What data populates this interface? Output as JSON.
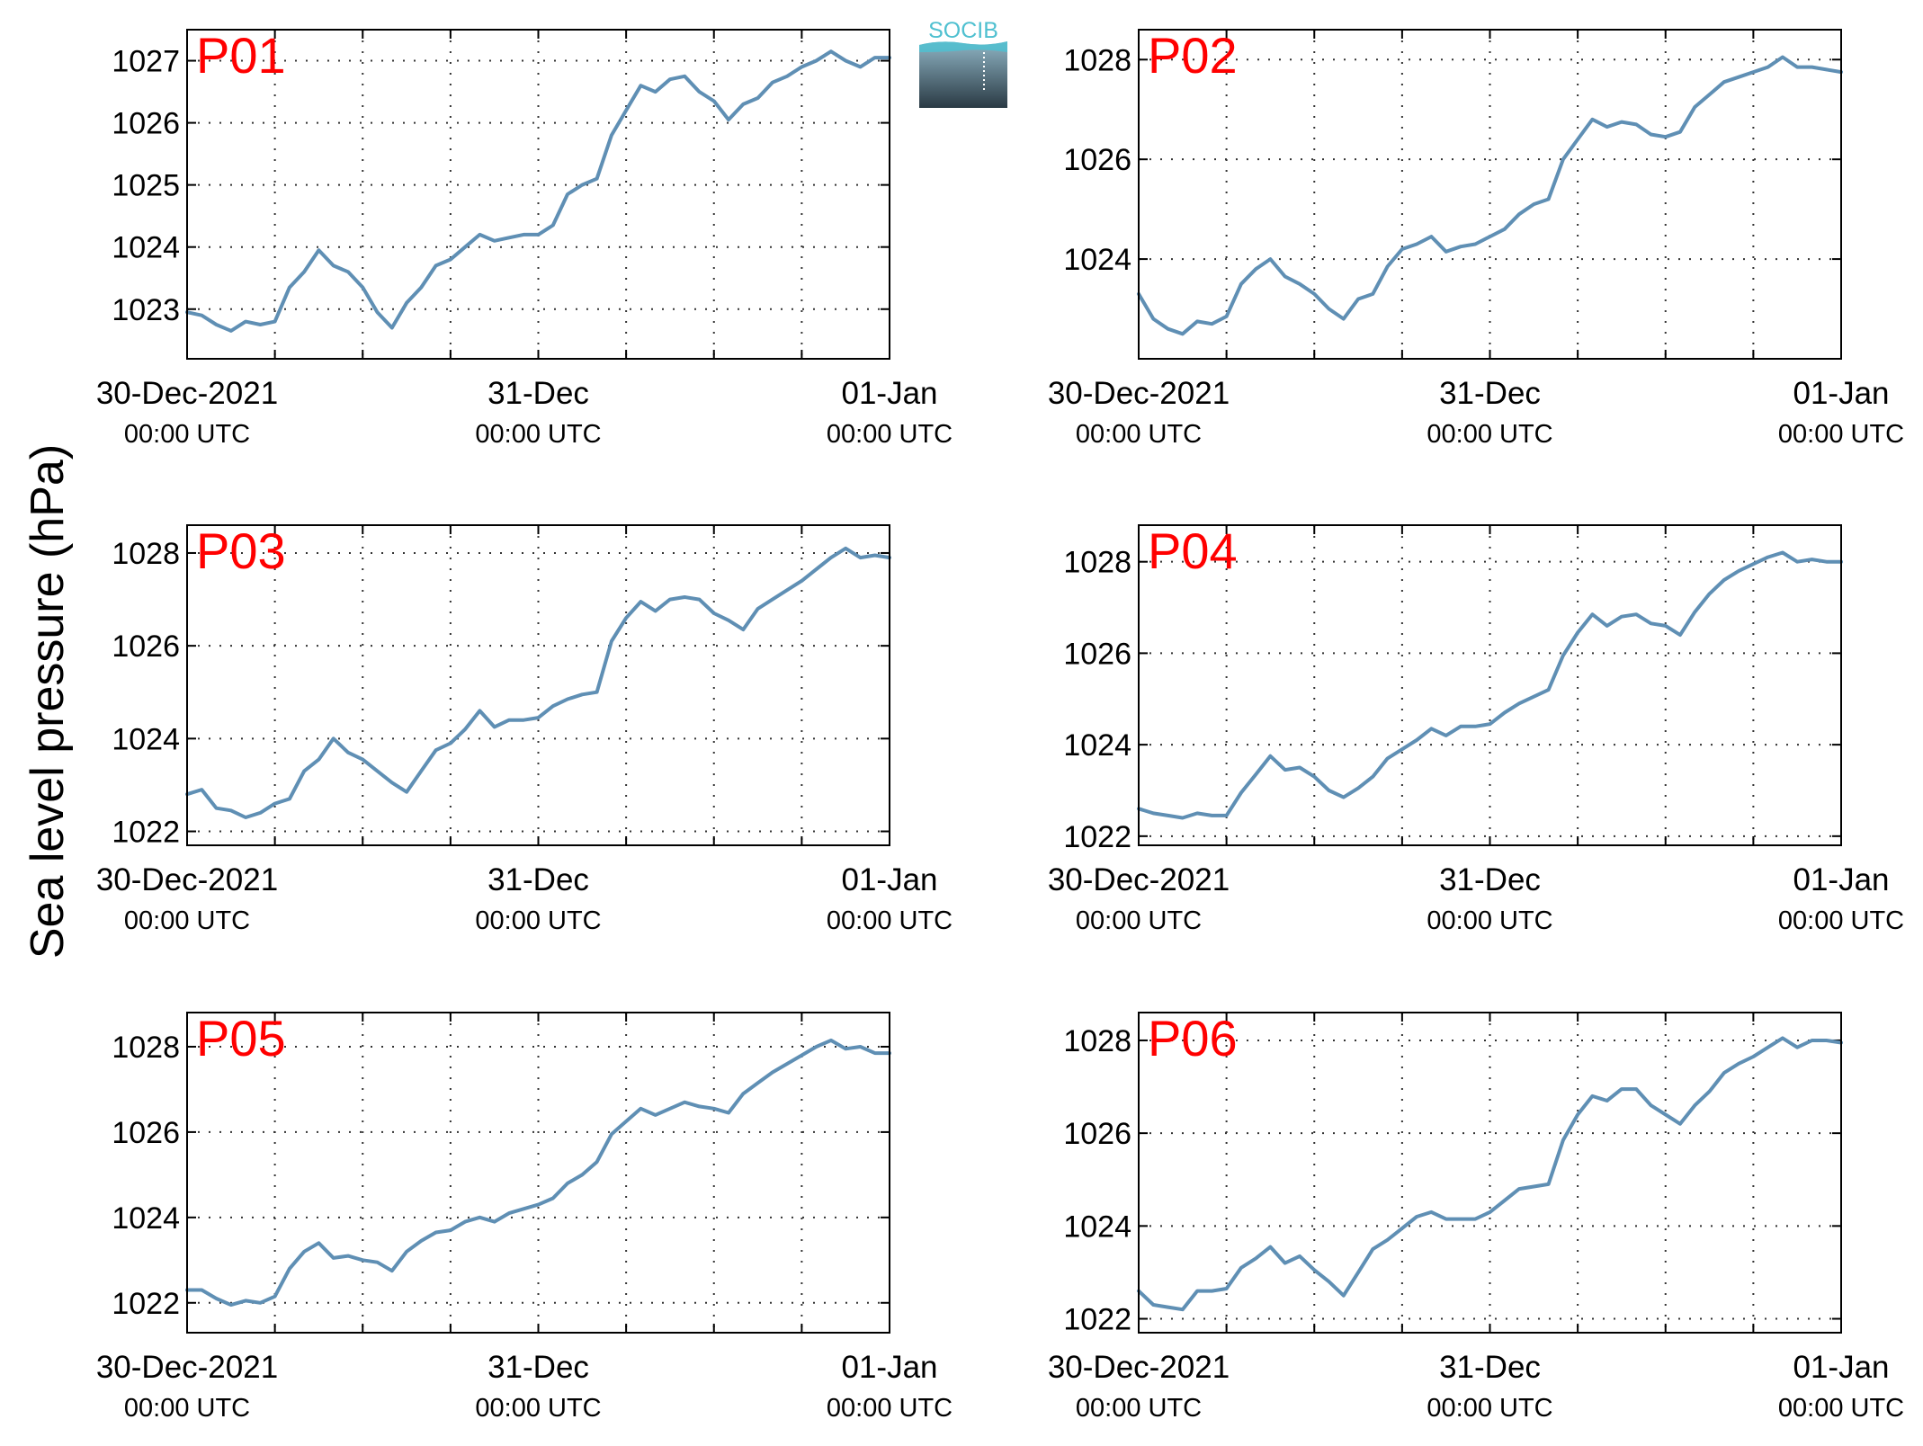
{
  "ylabel": "Sea level pressure (hPa)",
  "logo_text": "SOCIB",
  "colors": {
    "line": "#5f8fb4",
    "panel_label": "#ff0000",
    "grid": "#333333",
    "logo_teal": "#4fc0d0",
    "logo_dark": "#2a3a44"
  },
  "x_ticks": [
    {
      "date": "30-Dec-2021",
      "time": "00:00 UTC"
    },
    {
      "date": "31-Dec",
      "time": "00:00 UTC"
    },
    {
      "date": "01-Jan",
      "time": "00:00 UTC"
    }
  ],
  "chart_data": [
    {
      "type": "line",
      "label": "P01",
      "x_range": [
        "2021-12-30T00:00",
        "2022-01-01T00:00"
      ],
      "ylim": [
        1022.2,
        1027.5
      ],
      "yticks": [
        1023,
        1024,
        1025,
        1026,
        1027
      ],
      "grid": true,
      "series": [
        {
          "x_hours": [
            0,
            1,
            2,
            3,
            4,
            5,
            6,
            7,
            8,
            9,
            10,
            11,
            12,
            13,
            14,
            15,
            16,
            17,
            18,
            19,
            20,
            21,
            22,
            23,
            24,
            25,
            26,
            27,
            28,
            29,
            30,
            31,
            32,
            33,
            34,
            35,
            36,
            37,
            38,
            39,
            40,
            41,
            42,
            43,
            44,
            45,
            46,
            47,
            48
          ],
          "values": [
            1022.95,
            1022.9,
            1022.75,
            1022.65,
            1022.8,
            1022.75,
            1022.8,
            1023.35,
            1023.6,
            1023.95,
            1023.7,
            1023.6,
            1023.35,
            1022.95,
            1022.7,
            1023.1,
            1023.35,
            1023.7,
            1023.8,
            1024.0,
            1024.2,
            1024.1,
            1024.15,
            1024.2,
            1024.2,
            1024.35,
            1024.85,
            1025.0,
            1025.1,
            1025.8,
            1026.2,
            1026.6,
            1026.5,
            1026.7,
            1026.75,
            1026.5,
            1026.35,
            1026.05,
            1026.3,
            1026.4,
            1026.65,
            1026.75,
            1026.9,
            1027.0,
            1027.15,
            1027.0,
            1026.9,
            1027.05,
            1027.05
          ]
        }
      ]
    },
    {
      "type": "line",
      "label": "P02",
      "x_range": [
        "2021-12-30T00:00",
        "2022-01-01T00:00"
      ],
      "ylim": [
        1022.0,
        1028.6
      ],
      "yticks": [
        1024,
        1026,
        1028
      ],
      "grid": true,
      "series": [
        {
          "x_hours": [
            0,
            1,
            2,
            3,
            4,
            5,
            6,
            7,
            8,
            9,
            10,
            11,
            12,
            13,
            14,
            15,
            16,
            17,
            18,
            19,
            20,
            21,
            22,
            23,
            24,
            25,
            26,
            27,
            28,
            29,
            30,
            31,
            32,
            33,
            34,
            35,
            36,
            37,
            38,
            39,
            40,
            41,
            42,
            43,
            44,
            45,
            46,
            47,
            48
          ],
          "values": [
            1023.3,
            1022.8,
            1022.6,
            1022.5,
            1022.75,
            1022.7,
            1022.85,
            1023.5,
            1023.8,
            1024.0,
            1023.65,
            1023.5,
            1023.3,
            1023.0,
            1022.8,
            1023.2,
            1023.3,
            1023.85,
            1024.2,
            1024.3,
            1024.45,
            1024.15,
            1024.25,
            1024.3,
            1024.45,
            1024.6,
            1024.9,
            1025.1,
            1025.2,
            1026.0,
            1026.4,
            1026.8,
            1026.65,
            1026.75,
            1026.7,
            1026.5,
            1026.45,
            1026.55,
            1027.05,
            1027.3,
            1027.55,
            1027.65,
            1027.75,
            1027.85,
            1028.05,
            1027.85,
            1027.85,
            1027.8,
            1027.75
          ]
        }
      ]
    },
    {
      "type": "line",
      "label": "P03",
      "x_range": [
        "2021-12-30T00:00",
        "2022-01-01T00:00"
      ],
      "ylim": [
        1021.7,
        1028.6
      ],
      "yticks": [
        1022,
        1024,
        1026,
        1028
      ],
      "grid": true,
      "series": [
        {
          "x_hours": [
            0,
            1,
            2,
            3,
            4,
            5,
            6,
            7,
            8,
            9,
            10,
            11,
            12,
            13,
            14,
            15,
            16,
            17,
            18,
            19,
            20,
            21,
            22,
            23,
            24,
            25,
            26,
            27,
            28,
            29,
            30,
            31,
            32,
            33,
            34,
            35,
            36,
            37,
            38,
            39,
            40,
            41,
            42,
            43,
            44,
            45,
            46,
            47,
            48
          ],
          "values": [
            1022.8,
            1022.9,
            1022.5,
            1022.45,
            1022.3,
            1022.4,
            1022.6,
            1022.7,
            1023.3,
            1023.55,
            1024.0,
            1023.7,
            1023.55,
            1023.3,
            1023.05,
            1022.85,
            1023.3,
            1023.75,
            1023.9,
            1024.2,
            1024.6,
            1024.25,
            1024.4,
            1024.4,
            1024.45,
            1024.7,
            1024.85,
            1024.95,
            1025.0,
            1026.1,
            1026.6,
            1026.95,
            1026.75,
            1027.0,
            1027.05,
            1027.0,
            1026.7,
            1026.55,
            1026.35,
            1026.8,
            1027.0,
            1027.2,
            1027.4,
            1027.65,
            1027.9,
            1028.1,
            1027.9,
            1027.95,
            1027.9
          ]
        }
      ]
    },
    {
      "type": "line",
      "label": "P04",
      "x_range": [
        "2021-12-30T00:00",
        "2022-01-01T00:00"
      ],
      "ylim": [
        1021.8,
        1028.8
      ],
      "yticks": [
        1022,
        1024,
        1026,
        1028
      ],
      "grid": true,
      "series": [
        {
          "x_hours": [
            0,
            1,
            2,
            3,
            4,
            5,
            6,
            7,
            8,
            9,
            10,
            11,
            12,
            13,
            14,
            15,
            16,
            17,
            18,
            19,
            20,
            21,
            22,
            23,
            24,
            25,
            26,
            27,
            28,
            29,
            30,
            31,
            32,
            33,
            34,
            35,
            36,
            37,
            38,
            39,
            40,
            41,
            42,
            43,
            44,
            45,
            46,
            47,
            48
          ],
          "values": [
            1022.6,
            1022.5,
            1022.45,
            1022.4,
            1022.5,
            1022.45,
            1022.45,
            1022.95,
            1023.35,
            1023.75,
            1023.45,
            1023.5,
            1023.3,
            1023.0,
            1022.85,
            1023.05,
            1023.3,
            1023.7,
            1023.9,
            1024.1,
            1024.35,
            1024.2,
            1024.4,
            1024.4,
            1024.45,
            1024.7,
            1024.9,
            1025.05,
            1025.2,
            1025.95,
            1026.45,
            1026.85,
            1026.6,
            1026.8,
            1026.85,
            1026.65,
            1026.6,
            1026.4,
            1026.9,
            1027.3,
            1027.6,
            1027.8,
            1027.95,
            1028.1,
            1028.2,
            1028.0,
            1028.05,
            1028.0,
            1028.0
          ]
        }
      ]
    },
    {
      "type": "line",
      "label": "P05",
      "x_range": [
        "2021-12-30T00:00",
        "2022-01-01T00:00"
      ],
      "ylim": [
        1021.3,
        1028.8
      ],
      "yticks": [
        1022,
        1024,
        1026,
        1028
      ],
      "grid": true,
      "series": [
        {
          "x_hours": [
            0,
            1,
            2,
            3,
            4,
            5,
            6,
            7,
            8,
            9,
            10,
            11,
            12,
            13,
            14,
            15,
            16,
            17,
            18,
            19,
            20,
            21,
            22,
            23,
            24,
            25,
            26,
            27,
            28,
            29,
            30,
            31,
            32,
            33,
            34,
            35,
            36,
            37,
            38,
            39,
            40,
            41,
            42,
            43,
            44,
            45,
            46,
            47,
            48
          ],
          "values": [
            1022.3,
            1022.3,
            1022.1,
            1021.95,
            1022.05,
            1022.0,
            1022.15,
            1022.8,
            1023.2,
            1023.4,
            1023.05,
            1023.1,
            1023.0,
            1022.95,
            1022.75,
            1023.2,
            1023.45,
            1023.65,
            1023.7,
            1023.9,
            1024.0,
            1023.9,
            1024.1,
            1024.2,
            1024.3,
            1024.45,
            1024.8,
            1025.0,
            1025.3,
            1025.95,
            1026.25,
            1026.55,
            1026.4,
            1026.55,
            1026.7,
            1026.6,
            1026.55,
            1026.45,
            1026.9,
            1027.15,
            1027.4,
            1027.6,
            1027.8,
            1028.0,
            1028.15,
            1027.95,
            1028.0,
            1027.85,
            1027.85
          ]
        }
      ]
    },
    {
      "type": "line",
      "label": "P06",
      "x_range": [
        "2021-12-30T00:00",
        "2022-01-01T00:00"
      ],
      "ylim": [
        1021.7,
        1028.6
      ],
      "yticks": [
        1022,
        1024,
        1026,
        1028
      ],
      "grid": true,
      "series": [
        {
          "x_hours": [
            0,
            1,
            2,
            3,
            4,
            5,
            6,
            7,
            8,
            9,
            10,
            11,
            12,
            13,
            14,
            15,
            16,
            17,
            18,
            19,
            20,
            21,
            22,
            23,
            24,
            25,
            26,
            27,
            28,
            29,
            30,
            31,
            32,
            33,
            34,
            35,
            36,
            37,
            38,
            39,
            40,
            41,
            42,
            43,
            44,
            45,
            46,
            47,
            48
          ],
          "values": [
            1022.6,
            1022.3,
            1022.25,
            1022.2,
            1022.6,
            1022.6,
            1022.65,
            1023.1,
            1023.3,
            1023.55,
            1023.2,
            1023.35,
            1023.05,
            1022.8,
            1022.5,
            1023.0,
            1023.5,
            1023.7,
            1023.95,
            1024.2,
            1024.3,
            1024.15,
            1024.15,
            1024.15,
            1024.3,
            1024.55,
            1024.8,
            1024.85,
            1024.9,
            1025.85,
            1026.4,
            1026.8,
            1026.7,
            1026.95,
            1026.95,
            1026.6,
            1026.4,
            1026.2,
            1026.6,
            1026.9,
            1027.3,
            1027.5,
            1027.65,
            1027.85,
            1028.05,
            1027.85,
            1028.0,
            1028.0,
            1027.95
          ]
        }
      ]
    }
  ]
}
